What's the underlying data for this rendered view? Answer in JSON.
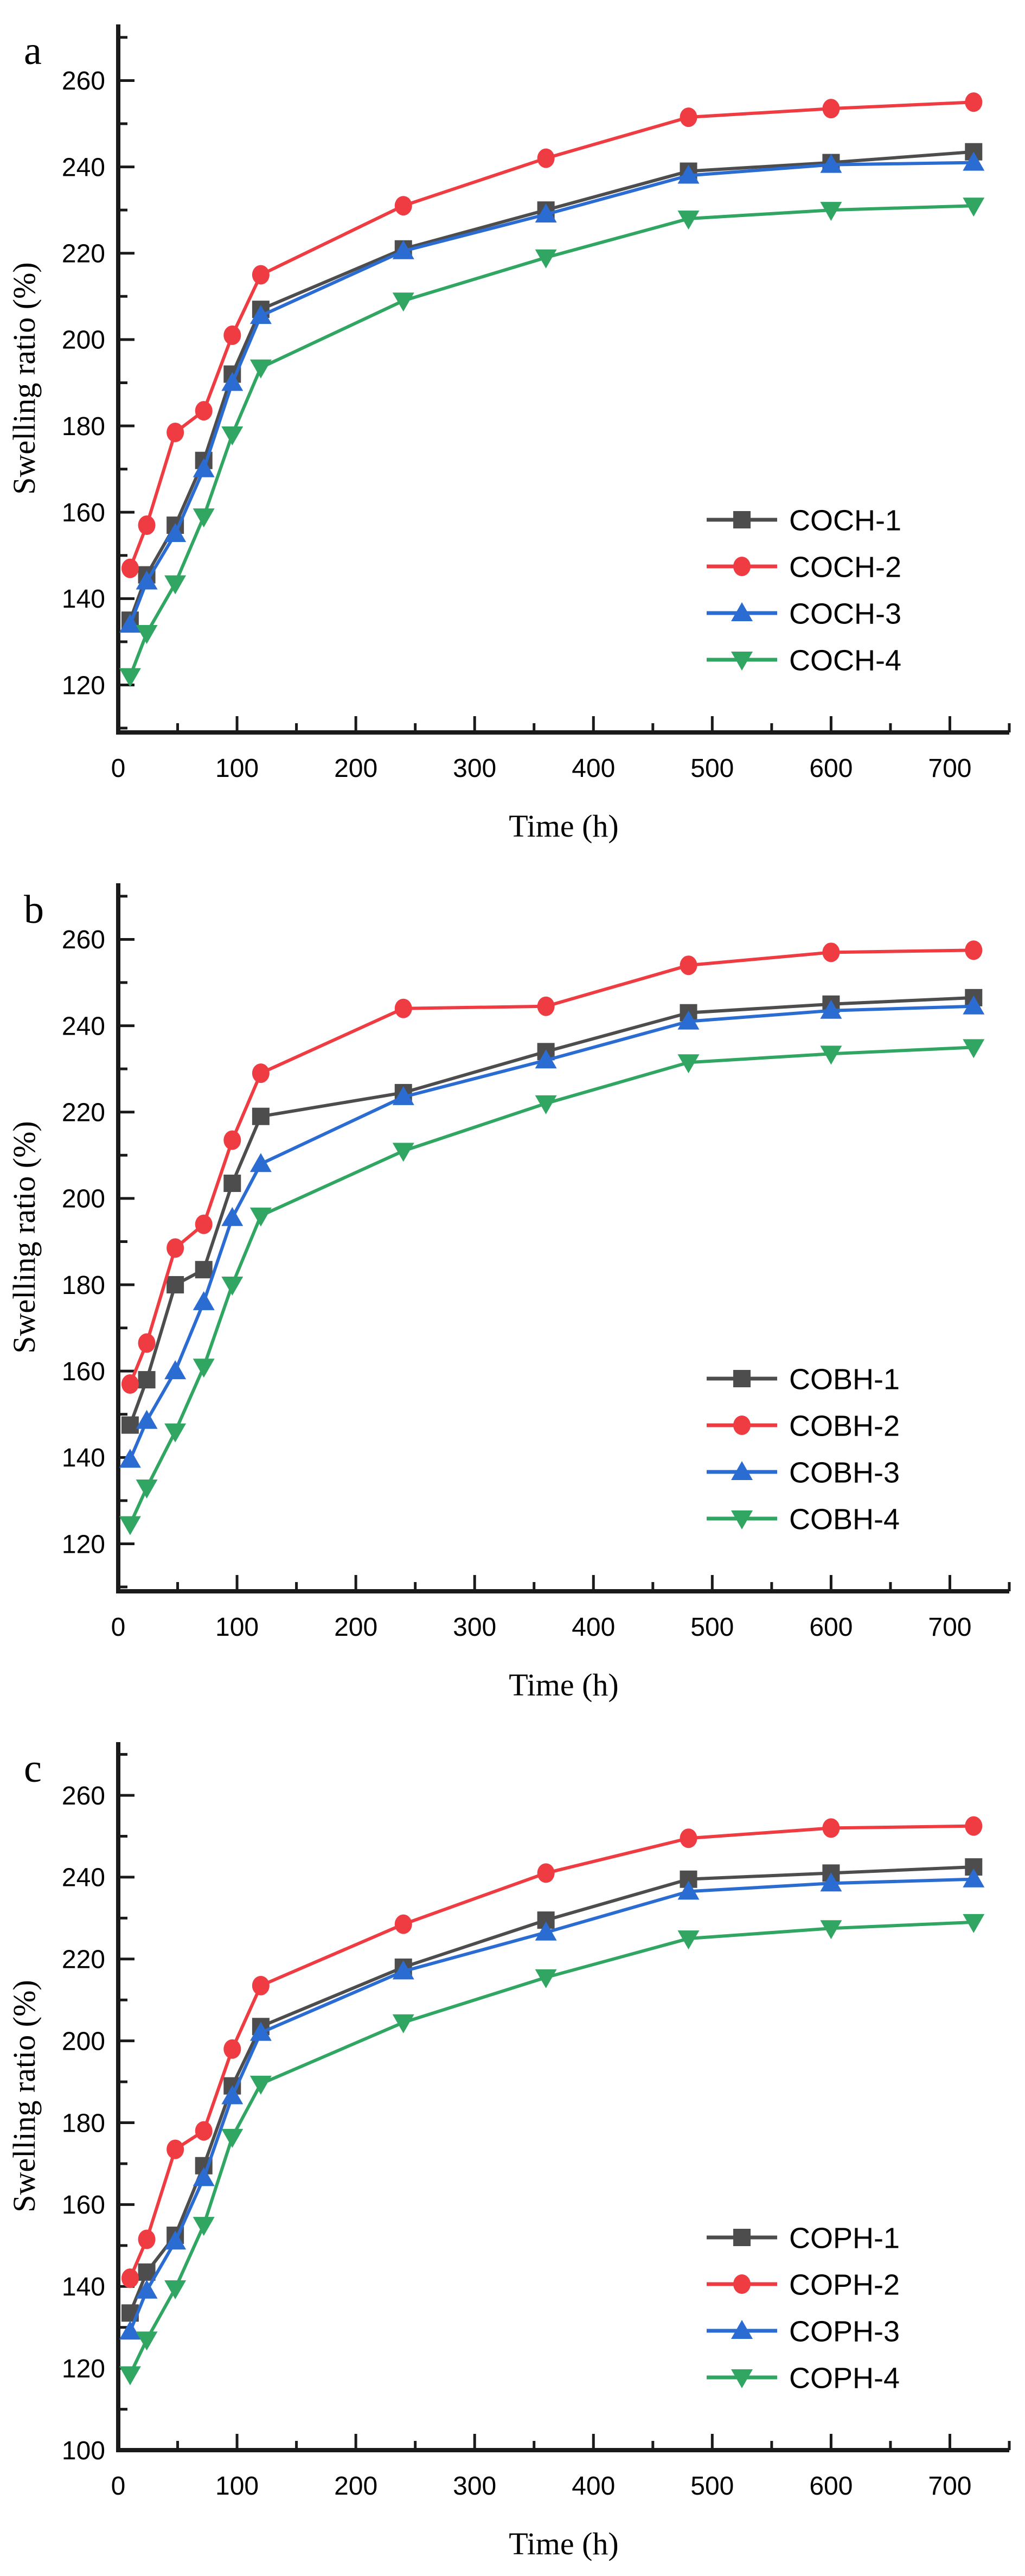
{
  "figure": {
    "background": "#ffffff",
    "axis_color": "#1a1a1a",
    "tick_label_fontsize": 48,
    "axis_title_fontsize": 58,
    "legend_fontsize": 54,
    "panel_letter_fontsize": 74
  },
  "chart_data": [
    {
      "type": "line",
      "panel_label": "a",
      "xlabel": "Time (h)",
      "ylabel": "Swelling ratio (%)",
      "x": [
        10,
        24,
        48,
        72,
        96,
        120,
        240,
        360,
        480,
        600,
        720
      ],
      "xlim": [
        0,
        750
      ],
      "ylim": [
        109,
        273
      ],
      "xticks_labeled": [
        0,
        100,
        200,
        300,
        400,
        500,
        600,
        700
      ],
      "xtick_minor_step": 50,
      "yticks_labeled": [
        120,
        140,
        160,
        180,
        200,
        220,
        240,
        260
      ],
      "ytick_minor_step": 10,
      "grid": "off",
      "legend_position": "inside-right-bottom",
      "series": [
        {
          "name": "COCH-1",
          "color": "#4d4d4d",
          "marker": "square",
          "values": [
            135,
            145.5,
            157,
            172,
            192,
            207,
            221,
            230,
            239,
            241,
            243.5
          ]
        },
        {
          "name": "COCH-2",
          "color": "#ee3c42",
          "marker": "circle",
          "values": [
            147,
            157,
            178.5,
            183.5,
            201,
            215,
            231,
            242,
            251.5,
            253.5,
            255
          ]
        },
        {
          "name": "COCH-3",
          "color": "#2b6cd3",
          "marker": "triangle-up",
          "values": [
            134,
            144,
            155,
            170,
            190,
            205.5,
            220.5,
            229,
            238,
            240.5,
            241
          ]
        },
        {
          "name": "COCH-4",
          "color": "#30a662",
          "marker": "triangle-down",
          "values": [
            122,
            132,
            143.5,
            159,
            178,
            193.5,
            209,
            219,
            228,
            230,
            231
          ]
        }
      ]
    },
    {
      "type": "line",
      "panel_label": "b",
      "xlabel": "Time (h)",
      "ylabel": "Swelling ratio (%)",
      "x": [
        10,
        24,
        48,
        72,
        96,
        120,
        240,
        360,
        480,
        600,
        720
      ],
      "xlim": [
        0,
        750
      ],
      "ylim": [
        109,
        273
      ],
      "xticks_labeled": [
        0,
        100,
        200,
        300,
        400,
        500,
        600,
        700
      ],
      "xtick_minor_step": 50,
      "yticks_labeled": [
        120,
        140,
        160,
        180,
        200,
        220,
        240,
        260
      ],
      "ytick_minor_step": 10,
      "grid": "off",
      "legend_position": "inside-right-bottom",
      "series": [
        {
          "name": "COBH-1",
          "color": "#4d4d4d",
          "marker": "square",
          "values": [
            147.5,
            158,
            180,
            183.5,
            203.5,
            219,
            224.5,
            234,
            243,
            245,
            246.5
          ]
        },
        {
          "name": "COBH-2",
          "color": "#ee3c42",
          "marker": "circle",
          "values": [
            157,
            166.5,
            188.5,
            194,
            213.5,
            229,
            244,
            244.5,
            254,
            257,
            257.5
          ]
        },
        {
          "name": "COBH-3",
          "color": "#2b6cd3",
          "marker": "triangle-up",
          "values": [
            139.5,
            148.5,
            160,
            176,
            195.5,
            208,
            223.5,
            232,
            241,
            243.5,
            244.5
          ]
        },
        {
          "name": "COBH-4",
          "color": "#30a662",
          "marker": "triangle-down",
          "values": [
            124.5,
            133,
            146,
            161,
            180,
            196,
            211,
            222,
            231.5,
            233.5,
            235
          ]
        }
      ]
    },
    {
      "type": "line",
      "panel_label": "c",
      "xlabel": "Time (h)",
      "ylabel": "Swelling ratio (%)",
      "x": [
        10,
        24,
        48,
        72,
        96,
        120,
        240,
        360,
        480,
        600,
        720
      ],
      "xlim": [
        0,
        750
      ],
      "ylim": [
        100,
        273
      ],
      "xticks_labeled": [
        0,
        100,
        200,
        300,
        400,
        500,
        600,
        700
      ],
      "xtick_minor_step": 50,
      "yticks_labeled": [
        100,
        120,
        140,
        160,
        180,
        200,
        220,
        240,
        260
      ],
      "ytick_minor_step": 10,
      "grid": "off",
      "legend_position": "inside-right-bottom",
      "series": [
        {
          "name": "COPH-1",
          "color": "#4d4d4d",
          "marker": "square",
          "values": [
            133.5,
            143.5,
            152.5,
            169.5,
            189,
            203.5,
            218,
            229.5,
            239.5,
            241,
            242.5
          ]
        },
        {
          "name": "COPH-2",
          "color": "#ee3c42",
          "marker": "circle",
          "values": [
            142,
            151.5,
            173.5,
            178,
            198,
            213.5,
            228.5,
            241,
            249.5,
            252,
            252.5
          ]
        },
        {
          "name": "COPH-3",
          "color": "#2b6cd3",
          "marker": "triangle-up",
          "values": [
            129,
            139,
            151,
            166.5,
            186.5,
            202,
            217,
            226.5,
            236.5,
            238.5,
            239.5
          ]
        },
        {
          "name": "COPH-4",
          "color": "#30a662",
          "marker": "triangle-down",
          "values": [
            118.5,
            127,
            139.5,
            155,
            176.5,
            189.5,
            204.5,
            215.5,
            225,
            227.5,
            229
          ]
        }
      ]
    }
  ]
}
